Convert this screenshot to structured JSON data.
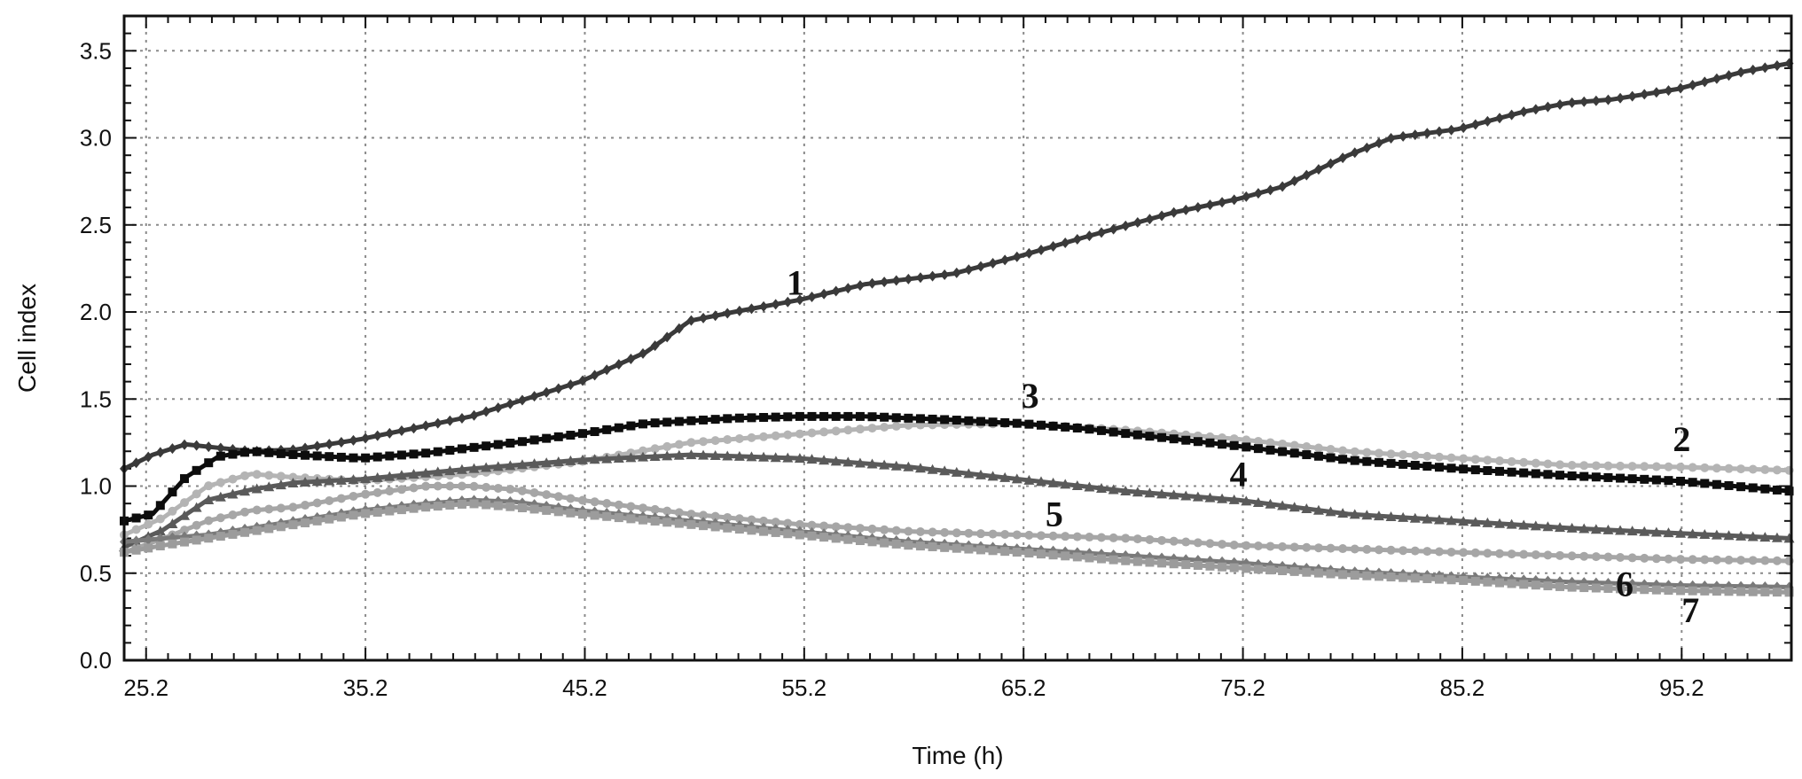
{
  "chart_data": {
    "type": "line",
    "title": "",
    "xlabel": "Time (h)",
    "ylabel": "Cell index",
    "xlim": [
      24.2,
      100.2
    ],
    "ylim": [
      0.0,
      3.7
    ],
    "x_ticks": [
      25.2,
      35.2,
      45.2,
      55.2,
      65.2,
      75.2,
      85.2,
      95.2
    ],
    "x_tick_labels": [
      "25.2",
      "35.2",
      "45.2",
      "55.2",
      "65.2",
      "75.2",
      "85.2",
      "95.2"
    ],
    "y_ticks": [
      0.0,
      0.5,
      1.0,
      1.5,
      2.0,
      2.5,
      3.0,
      3.5
    ],
    "y_tick_labels": [
      "0.0",
      "0.5",
      "1.0",
      "1.5",
      "2.0",
      "2.5",
      "3.0",
      "3.5"
    ],
    "grid": true,
    "legend": "none",
    "series": [
      {
        "name": "1",
        "color": "#3a3a3a",
        "marker": "diamond",
        "label_at": [
          54.8,
          2.1
        ],
        "x": [
          24.2,
          25.5,
          27,
          28.5,
          30,
          32,
          35,
          40,
          45,
          48,
          50,
          52,
          55,
          58,
          62,
          65,
          68,
          70,
          72,
          75,
          77,
          80,
          82,
          85,
          88,
          90,
          92,
          95,
          98,
          100.2
        ],
        "y": [
          1.1,
          1.18,
          1.24,
          1.22,
          1.2,
          1.21,
          1.27,
          1.4,
          1.6,
          1.77,
          1.95,
          2.0,
          2.07,
          2.16,
          2.22,
          2.32,
          2.43,
          2.5,
          2.57,
          2.65,
          2.72,
          2.9,
          3.0,
          3.05,
          3.15,
          3.2,
          3.22,
          3.28,
          3.38,
          3.43
        ]
      },
      {
        "name": "2",
        "color": "#b4b4b4",
        "marker": "circle",
        "label_at": [
          95.2,
          1.2
        ],
        "x": [
          24.2,
          26,
          28,
          30,
          32,
          35,
          40,
          45,
          50,
          55,
          60,
          65,
          70,
          75,
          80,
          85,
          90,
          95,
          100.2
        ],
        "y": [
          0.72,
          0.82,
          1.0,
          1.07,
          1.05,
          1.03,
          1.07,
          1.14,
          1.25,
          1.3,
          1.35,
          1.36,
          1.32,
          1.27,
          1.2,
          1.16,
          1.12,
          1.11,
          1.09
        ]
      },
      {
        "name": "3",
        "color": "#0d0d0d",
        "marker": "square",
        "label_at": [
          65.5,
          1.45
        ],
        "x": [
          24.2,
          25.5,
          27,
          28.5,
          30,
          32,
          35,
          38,
          42,
          45,
          48,
          52,
          55,
          58,
          60,
          62,
          65,
          68,
          70,
          75,
          80,
          85,
          90,
          95,
          100.2
        ],
        "y": [
          0.8,
          0.84,
          1.05,
          1.17,
          1.2,
          1.18,
          1.16,
          1.19,
          1.25,
          1.3,
          1.36,
          1.39,
          1.4,
          1.4,
          1.39,
          1.38,
          1.36,
          1.33,
          1.3,
          1.23,
          1.15,
          1.1,
          1.06,
          1.03,
          0.97
        ]
      },
      {
        "name": "4",
        "color": "#5a5a5a",
        "marker": "triangle",
        "label_at": [
          75.0,
          1.0
        ],
        "x": [
          24.2,
          26,
          28,
          30,
          32,
          35,
          40,
          45,
          50,
          55,
          60,
          65,
          70,
          75,
          80,
          85,
          90,
          95,
          100.2
        ],
        "y": [
          0.65,
          0.75,
          0.92,
          0.98,
          1.02,
          1.04,
          1.1,
          1.15,
          1.18,
          1.16,
          1.11,
          1.04,
          0.97,
          0.92,
          0.84,
          0.8,
          0.76,
          0.73,
          0.7
        ]
      },
      {
        "name": "5",
        "color": "#a6a6a6",
        "marker": "circle",
        "label_at": [
          66.6,
          0.77
        ],
        "x": [
          24.2,
          26,
          28,
          30,
          32,
          35,
          38,
          40,
          42,
          45,
          50,
          55,
          60,
          65,
          70,
          75,
          80,
          85,
          90,
          95,
          100.2
        ],
        "y": [
          0.62,
          0.7,
          0.8,
          0.86,
          0.88,
          0.95,
          1.0,
          1.0,
          0.98,
          0.92,
          0.84,
          0.78,
          0.74,
          0.72,
          0.7,
          0.66,
          0.64,
          0.62,
          0.6,
          0.58,
          0.57
        ]
      },
      {
        "name": "6",
        "color": "#7a7a7a",
        "marker": "diamond",
        "label_at": [
          92.6,
          0.37
        ],
        "x": [
          24.2,
          26,
          28,
          30,
          32,
          35,
          38,
          40,
          42,
          45,
          50,
          55,
          60,
          65,
          70,
          75,
          80,
          85,
          90,
          95,
          100.2
        ],
        "y": [
          0.68,
          0.7,
          0.72,
          0.76,
          0.8,
          0.86,
          0.9,
          0.92,
          0.91,
          0.86,
          0.8,
          0.74,
          0.68,
          0.64,
          0.6,
          0.56,
          0.51,
          0.48,
          0.45,
          0.43,
          0.42
        ]
      },
      {
        "name": "7",
        "color": "#9c9c9c",
        "marker": "square",
        "label_at": [
          95.6,
          0.22
        ],
        "x": [
          24.2,
          26,
          28,
          30,
          32,
          35,
          38,
          40,
          42,
          45,
          50,
          55,
          60,
          65,
          70,
          75,
          80,
          85,
          90,
          95,
          100.2
        ],
        "y": [
          0.62,
          0.66,
          0.7,
          0.74,
          0.78,
          0.84,
          0.88,
          0.9,
          0.88,
          0.84,
          0.78,
          0.72,
          0.66,
          0.62,
          0.57,
          0.53,
          0.49,
          0.46,
          0.42,
          0.4,
          0.39
        ]
      }
    ]
  }
}
